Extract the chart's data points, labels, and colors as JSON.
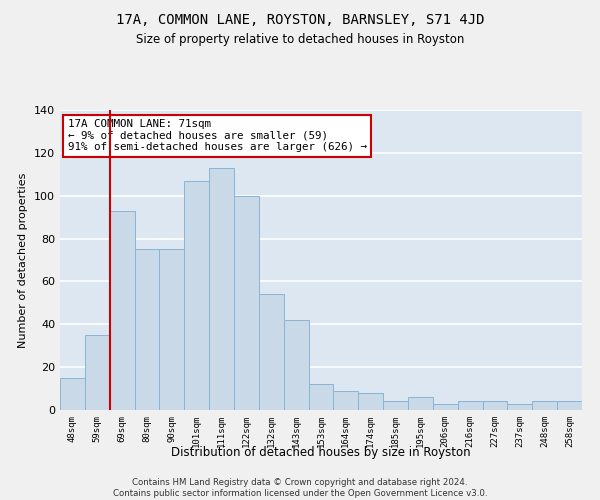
{
  "title1": "17A, COMMON LANE, ROYSTON, BARNSLEY, S71 4JD",
  "title2": "Size of property relative to detached houses in Royston",
  "xlabel": "Distribution of detached houses by size in Royston",
  "ylabel": "Number of detached properties",
  "categories": [
    "48sqm",
    "59sqm",
    "69sqm",
    "80sqm",
    "90sqm",
    "101sqm",
    "111sqm",
    "122sqm",
    "132sqm",
    "143sqm",
    "153sqm",
    "164sqm",
    "174sqm",
    "185sqm",
    "195sqm",
    "206sqm",
    "216sqm",
    "227sqm",
    "237sqm",
    "248sqm",
    "258sqm"
  ],
  "values": [
    15,
    35,
    93,
    75,
    75,
    107,
    113,
    100,
    54,
    42,
    12,
    9,
    8,
    4,
    6,
    3,
    4,
    4,
    3,
    4,
    4
  ],
  "bar_color": "#c9d9e8",
  "bar_edgecolor": "#8ab4d4",
  "bg_color": "#dde7f2",
  "grid_color": "#ffffff",
  "vline_x": 1.5,
  "vline_color": "#cc0000",
  "annotation_text": "17A COMMON LANE: 71sqm\n← 9% of detached houses are smaller (59)\n91% of semi-detached houses are larger (626) →",
  "annotation_box_color": "#ffffff",
  "annotation_box_edgecolor": "#cc0000",
  "footer": "Contains HM Land Registry data © Crown copyright and database right 2024.\nContains public sector information licensed under the Open Government Licence v3.0.",
  "ylim": [
    0,
    140
  ],
  "yticks": [
    0,
    20,
    40,
    60,
    80,
    100,
    120,
    140
  ],
  "fig_bg": "#f0f0f0"
}
